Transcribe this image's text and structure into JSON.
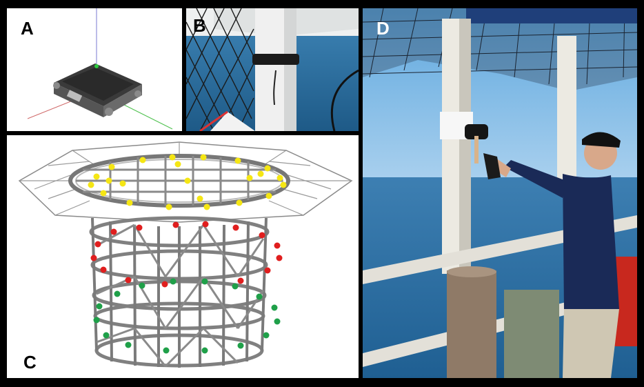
{
  "panels": {
    "a": {
      "label": "A"
    },
    "b": {
      "label": "B"
    },
    "c": {
      "label": "C"
    },
    "d": {
      "label": "D"
    }
  },
  "colors": {
    "sensor_nodes_top": "#f5e614",
    "sensor_nodes_middle": "#e01e1e",
    "sensor_nodes_bottom": "#1fa049",
    "sky": "#6fb2e3",
    "sea": "#2f6fa3",
    "frame": "#000000"
  },
  "icons": {
    "panel_a": "sensor-device-render-icon",
    "panel_b": "strapped-sensor-photo-icon",
    "panel_c": "cage-structure-wireframe-icon",
    "panel_d": "person-hammering-photo-icon"
  }
}
